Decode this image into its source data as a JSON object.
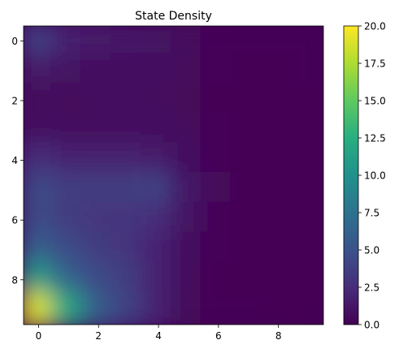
{
  "chart_data": {
    "type": "heatmap",
    "title": "State Density",
    "xlabel": "",
    "ylabel": "",
    "colormap": "viridis",
    "interpolation": "bilinear",
    "x_ticks": [
      0,
      2,
      4,
      6,
      8
    ],
    "y_ticks": [
      0,
      2,
      4,
      6,
      8
    ],
    "x_range": [
      -0.5,
      9.5
    ],
    "y_range": [
      -0.5,
      9.5
    ],
    "y_inverted": true,
    "colorbar": {
      "range": [
        0,
        20
      ],
      "ticks": [
        "0.0",
        "2.5",
        "5.0",
        "7.5",
        "10.0",
        "12.5",
        "15.0",
        "17.5",
        "20.0"
      ]
    },
    "matrix": [
      [
        4,
        2,
        1.5,
        1.2,
        1,
        0.6,
        0.3,
        0.2,
        0.1,
        0.1
      ],
      [
        1.5,
        1,
        0.8,
        0.8,
        0.7,
        0.5,
        0.3,
        0.2,
        0.1,
        0.1
      ],
      [
        0.5,
        0.5,
        0.6,
        0.7,
        0.6,
        0.4,
        0.2,
        0.1,
        0.1,
        0
      ],
      [
        0.8,
        0.6,
        0.6,
        0.8,
        0.8,
        0.5,
        0.3,
        0.1,
        0.1,
        0
      ],
      [
        2.5,
        2,
        1.8,
        1.8,
        1.5,
        0.8,
        0.3,
        0.1,
        0.1,
        0
      ],
      [
        4.5,
        3.5,
        3.5,
        3.5,
        4,
        1.2,
        0.4,
        0.1,
        0.1,
        0
      ],
      [
        4.5,
        3.5,
        3,
        3,
        2.5,
        1,
        0.3,
        0.1,
        0.1,
        0
      ],
      [
        6,
        4.5,
        3.5,
        3,
        2,
        0.8,
        0.3,
        0.1,
        0.1,
        0
      ],
      [
        11,
        6.5,
        4.5,
        3.5,
        2,
        0.6,
        0.2,
        0.1,
        0,
        0
      ],
      [
        19,
        12,
        6,
        4,
        2,
        0.5,
        0.2,
        0.1,
        0,
        0
      ]
    ]
  }
}
